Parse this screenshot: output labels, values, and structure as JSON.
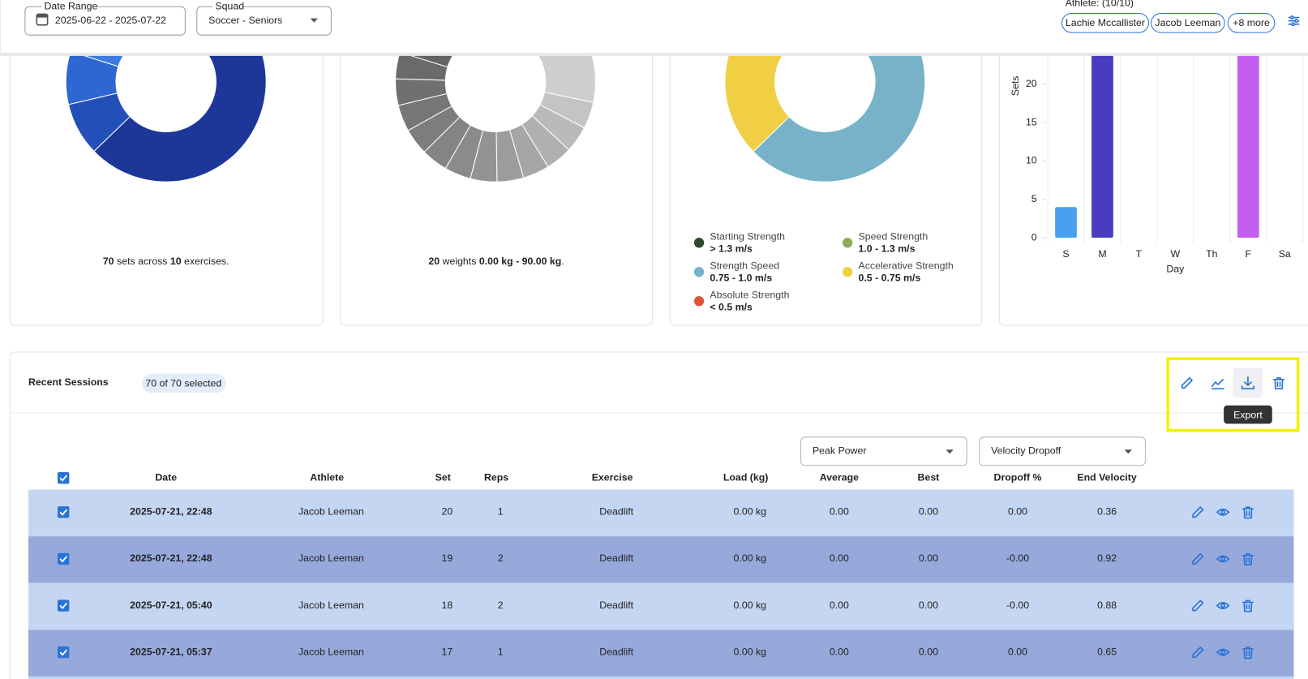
{
  "header": {
    "date_range_label": "Date Range",
    "date_range": "2025-06-22 - 2025-07-22",
    "squad_label": "Squad",
    "squad": "Soccer - Seniors",
    "athlete_label": "Athlete: (10/10)",
    "athlete_chips": [
      "Lachie Mccallister",
      "Jacob Leeman",
      "+8 more"
    ]
  },
  "chart_data": [
    {
      "type": "donut",
      "caption": [
        "70",
        "sets across",
        "10",
        "exercises."
      ],
      "values": [
        42,
        6,
        6,
        5,
        3,
        2,
        2,
        2,
        1,
        1
      ],
      "colors": [
        "#1c3798",
        "#2350b8",
        "#2e66d2",
        "#3b7be3",
        "#4a8ff0",
        "#5a9cf2",
        "#6aa8f4",
        "#7bb4f6",
        "#8cc0f8",
        "#9dccfa"
      ]
    },
    {
      "type": "donut",
      "caption": [
        "20",
        "weights",
        "0.00 kg - 90.00 kg",
        "."
      ],
      "values": [
        14,
        3,
        3,
        3,
        3,
        3,
        3,
        3,
        3,
        3,
        3,
        3,
        3,
        3,
        3,
        3,
        3,
        3,
        3,
        2
      ],
      "colors": [
        "#cfcfcf",
        "#c4c4c4",
        "#bababa",
        "#b0b0b0",
        "#a6a6a6",
        "#9c9c9c",
        "#939393",
        "#8b8b8b",
        "#848484",
        "#7d7d7d",
        "#767676",
        "#707070",
        "#6a6a6a",
        "#646464",
        "#5e5e5e",
        "#595959",
        "#545454",
        "#4f4f4f",
        "#4a4a4a",
        "#454545"
      ]
    },
    {
      "type": "donut",
      "series": [
        {
          "name": "Starting Strength",
          "range": "> 1.3 m/s",
          "color": "#2d4a2a",
          "value": 3
        },
        {
          "name": "Speed Strength",
          "range": "1.0 - 1.3 m/s",
          "color": "#8fac5a",
          "value": 6
        },
        {
          "name": "Strength Speed",
          "range": "0.75 - 1.0 m/s",
          "color": "#78b2c8",
          "value": 38
        },
        {
          "name": "Accelerative Strength",
          "range": "0.5 - 0.75 m/s",
          "color": "#f0cf44",
          "value": 22
        },
        {
          "name": "Absolute Strength",
          "range": "< 0.5 m/s",
          "color": "#e0553a",
          "value": 1
        }
      ]
    },
    {
      "type": "bar",
      "x_label": "Day",
      "y_label": "Sets",
      "categories": [
        "S",
        "M",
        "T",
        "W",
        "Th",
        "F",
        "Sa"
      ],
      "values": [
        4,
        33,
        0,
        0,
        0,
        33,
        0
      ],
      "colors": [
        "#4a9ff0",
        "#4a3cbf",
        "#4a3cbf",
        "#4a3cbf",
        "#4a3cbf",
        "#c35ef0",
        "#c35ef0"
      ],
      "ylim": [
        0,
        35
      ],
      "yticks": [
        0,
        5,
        10,
        15,
        20
      ]
    }
  ],
  "sessions": {
    "title": "Recent Sessions",
    "selected": "70 of 70 selected",
    "tooltip": "Export",
    "metric_1": "Peak Power",
    "metric_2": "Velocity Dropoff"
  },
  "table": {
    "columns": [
      "Date",
      "Athlete",
      "Set",
      "Reps",
      "Exercise",
      "Load (kg)",
      "Average",
      "Best",
      "Dropoff %",
      "End Velocity"
    ],
    "rows": [
      [
        "2025-07-21, 22:48",
        "Jacob Leeman",
        "20",
        "1",
        "Deadlift",
        "0.00 kg",
        "0.00",
        "0.00",
        "0.00",
        "0.36"
      ],
      [
        "2025-07-21, 22:48",
        "Jacob Leeman",
        "19",
        "2",
        "Deadlift",
        "0.00 kg",
        "0.00",
        "0.00",
        "-0.00",
        "0.92"
      ],
      [
        "2025-07-21, 05:40",
        "Jacob Leeman",
        "18",
        "2",
        "Deadlift",
        "0.00 kg",
        "0.00",
        "0.00",
        "-0.00",
        "0.88"
      ],
      [
        "2025-07-21, 05:37",
        "Jacob Leeman",
        "17",
        "1",
        "Deadlift",
        "0.00 kg",
        "0.00",
        "0.00",
        "0.00",
        "0.65"
      ]
    ]
  }
}
